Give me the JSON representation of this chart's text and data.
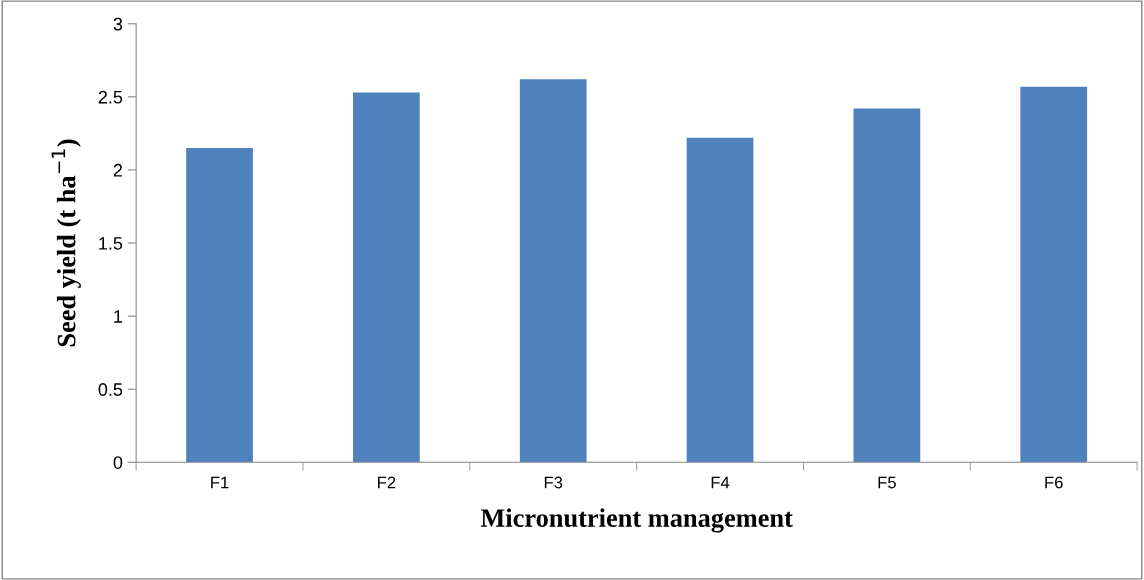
{
  "chart_data": {
    "type": "bar",
    "xlabel": "Micronutrient management",
    "ylabel": "Seed yield (t ha$^{−1}$)",
    "categories": [
      "F1",
      "F2",
      "F3",
      "F4",
      "F5",
      "F6"
    ],
    "values": [
      2.15,
      2.53,
      2.62,
      2.22,
      2.42,
      2.57
    ],
    "color": "#4f81bd",
    "ylim": [
      0,
      3
    ],
    "yticks": [
      0,
      0.5,
      1,
      1.5,
      2,
      2.5,
      3
    ],
    "grid": false,
    "legend": false
  }
}
